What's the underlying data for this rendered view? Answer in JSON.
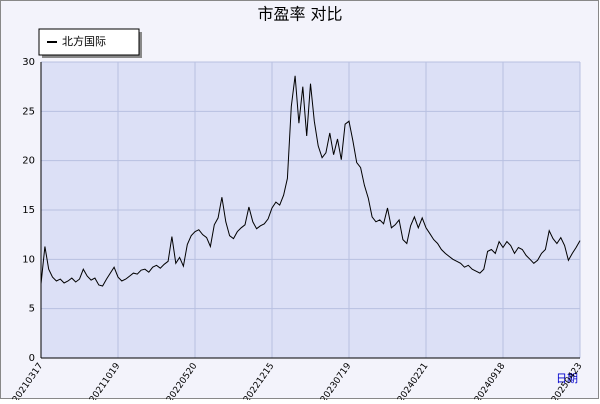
{
  "chart_data": {
    "type": "line",
    "title": "市盈率  对比",
    "xlabel": "日期",
    "categories": [
      "20210317",
      null,
      null,
      null,
      null,
      null,
      null,
      null,
      null,
      null,
      null,
      null,
      null,
      null,
      null,
      null,
      null,
      null,
      null,
      null,
      "20211019",
      null,
      null,
      null,
      null,
      null,
      null,
      null,
      null,
      null,
      null,
      null,
      null,
      null,
      null,
      null,
      null,
      null,
      null,
      null,
      "20220520",
      null,
      null,
      null,
      null,
      null,
      null,
      null,
      null,
      null,
      null,
      null,
      null,
      null,
      null,
      null,
      null,
      null,
      null,
      null,
      "20221215",
      null,
      null,
      null,
      null,
      null,
      null,
      null,
      null,
      null,
      null,
      null,
      null,
      null,
      null,
      null,
      null,
      null,
      null,
      null,
      "20230719",
      null,
      null,
      null,
      null,
      null,
      null,
      null,
      null,
      null,
      null,
      null,
      null,
      null,
      null,
      null,
      null,
      null,
      null,
      null,
      "20240221",
      null,
      null,
      null,
      null,
      null,
      null,
      null,
      null,
      null,
      null,
      null,
      null,
      null,
      null,
      null,
      null,
      null,
      null,
      null,
      "20240918",
      null,
      null,
      null,
      null,
      null,
      null,
      null,
      null,
      null,
      null,
      null,
      null,
      null,
      null,
      null,
      null,
      null,
      null,
      null,
      "20250423"
    ],
    "series": [
      {
        "name": "北方国际",
        "color": "#000000",
        "values": [
          7.5,
          11.3,
          9,
          8.2,
          7.8,
          8,
          7.6,
          7.8,
          8.1,
          7.7,
          8,
          9,
          8.3,
          7.9,
          8.1,
          7.4,
          7.3,
          8,
          8.6,
          9.2,
          8.2,
          7.8,
          8,
          8.3,
          8.6,
          8.5,
          8.9,
          9,
          8.7,
          9.2,
          9.4,
          9.1,
          9.5,
          9.8,
          12.3,
          9.6,
          10.2,
          9.3,
          11.5,
          12.4,
          12.8,
          13,
          12.5,
          12.2,
          11.3,
          13.5,
          14.2,
          16.3,
          13.8,
          12.4,
          12.1,
          12.8,
          13.2,
          13.5,
          15.3,
          13.8,
          13.1,
          13.4,
          13.6,
          14.1,
          15.2,
          15.8,
          15.5,
          16.5,
          18.2,
          25.5,
          28.6,
          23.8,
          27.5,
          22.5,
          27.8,
          24,
          21.5,
          20.3,
          20.8,
          22.8,
          20.6,
          22.2,
          20.1,
          23.7,
          24,
          22,
          19.8,
          19.3,
          17.5,
          16.2,
          14.3,
          13.8,
          14,
          13.6,
          15.2,
          13.2,
          13.5,
          14,
          12,
          11.6,
          13.4,
          14.3,
          13.2,
          14.2,
          13.2,
          12.6,
          12,
          11.6,
          11,
          10.6,
          10.3,
          10,
          9.8,
          9.6,
          9.2,
          9.4,
          9,
          8.8,
          8.6,
          9,
          10.8,
          11,
          10.6,
          11.8,
          11.2,
          11.8,
          11.4,
          10.6,
          11.2,
          11,
          10.4,
          10,
          9.6,
          9.9,
          10.6,
          11,
          12.9,
          12.1,
          11.6,
          12.2,
          11.4,
          9.9,
          10.6,
          11.2,
          11.9
        ]
      }
    ],
    "ylim": [
      0,
      30
    ],
    "yticks": [
      0,
      5,
      10,
      15,
      20,
      25,
      30
    ],
    "grid": true
  }
}
